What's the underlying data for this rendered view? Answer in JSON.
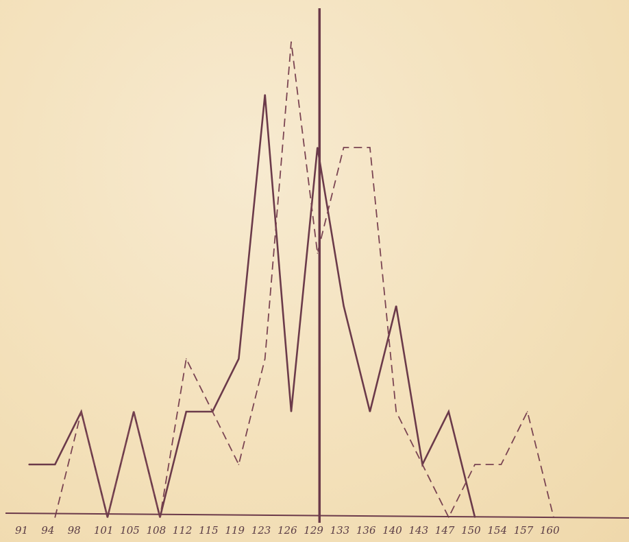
{
  "chart_data": {
    "type": "line",
    "title": "",
    "xlabel": "",
    "ylabel": "",
    "categories": [
      "91",
      "94",
      "98",
      "101",
      "105",
      "108",
      "112",
      "115",
      "119",
      "123",
      "126",
      "129",
      "133",
      "136",
      "140",
      "143",
      "147",
      "150",
      "154",
      "157",
      "160"
    ],
    "ylim": [
      0,
      9
    ],
    "grid": false,
    "legend": "none",
    "reference_line": {
      "category": "129",
      "label": ""
    },
    "series": [
      {
        "style": "solid",
        "color": "#6b3a4a",
        "points": [
          {
            "x": "91",
            "y": 1
          },
          {
            "x": "94",
            "y": 1
          },
          {
            "x": "98",
            "y": 2
          },
          {
            "x": "101",
            "y": 0
          },
          {
            "x": "105",
            "y": 2
          },
          {
            "x": "108",
            "y": 0
          },
          {
            "x": "112",
            "y": 2
          },
          {
            "x": "115",
            "y": 2
          },
          {
            "x": "119",
            "y": 3
          },
          {
            "x": "123",
            "y": 8
          },
          {
            "x": "126",
            "y": 2
          },
          {
            "x": "129",
            "y": 7
          },
          {
            "x": "133",
            "y": 4
          },
          {
            "x": "136",
            "y": 2
          },
          {
            "x": "140",
            "y": 4
          },
          {
            "x": "143",
            "y": 1
          },
          {
            "x": "147",
            "y": 2
          },
          {
            "x": "150",
            "y": 0
          }
        ]
      },
      {
        "style": "dashed",
        "color": "#7a4452",
        "points": [
          {
            "x": "94",
            "y": 0
          },
          {
            "x": "98",
            "y": 2
          },
          {
            "x": "101",
            "y": 0
          },
          {
            "x": "105",
            "y": 2
          },
          {
            "x": "108",
            "y": 0
          },
          {
            "x": "112",
            "y": 3
          },
          {
            "x": "115",
            "y": 2
          },
          {
            "x": "119",
            "y": 1
          },
          {
            "x": "123",
            "y": 3
          },
          {
            "x": "126",
            "y": 9
          },
          {
            "x": "129",
            "y": 5
          },
          {
            "x": "133",
            "y": 7
          },
          {
            "x": "136",
            "y": 7
          },
          {
            "x": "140",
            "y": 2
          },
          {
            "x": "143",
            "y": 1
          },
          {
            "x": "147",
            "y": 0
          },
          {
            "x": "150",
            "y": 1
          },
          {
            "x": "154",
            "y": 1
          },
          {
            "x": "157",
            "y": 2
          },
          {
            "x": "160",
            "y": 0
          }
        ]
      }
    ],
    "colors": {
      "background": "#f4e3bf",
      "axis": "#6b3a4a",
      "tick_text": "#5a3c45"
    }
  }
}
